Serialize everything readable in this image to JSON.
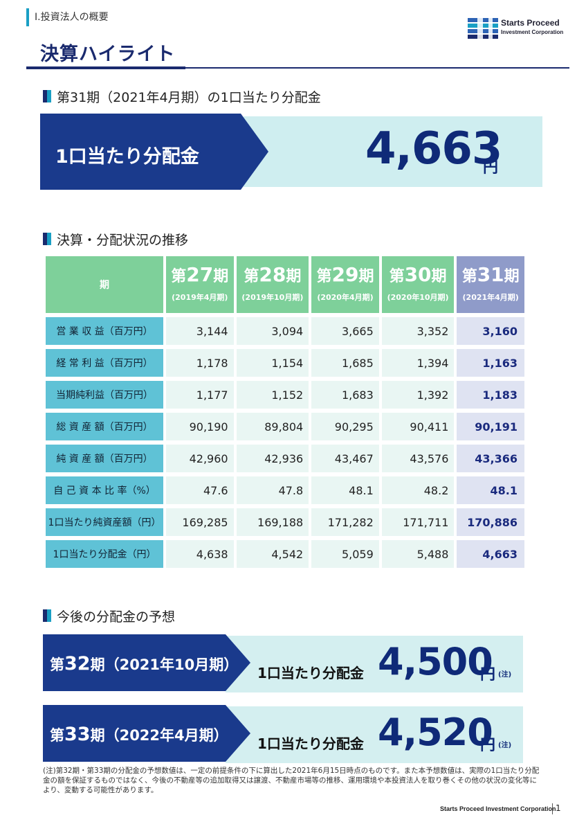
{
  "header": {
    "section_label": "Ⅰ.投資法人の概要",
    "logo_line1": "Starts Proceed",
    "logo_line2": "Investment Corporation",
    "page_title": "決算ハイライト"
  },
  "colors": {
    "navy": "#1a3a8c",
    "teal": "#5fc2d6",
    "green": "#7ed09a",
    "highlight": "#8f9bc9"
  },
  "distribution": {
    "heading": "第31期（2021年4月期）の1口当たり分配金",
    "label": "1口当たり分配金",
    "amount": "4,663",
    "unit": "円"
  },
  "results": {
    "heading": "決算・分配状況の推移",
    "corner": "期",
    "periods": [
      {
        "pre": "第",
        "num": "27",
        "post": "期",
        "date": "(2019年4月期)"
      },
      {
        "pre": "第",
        "num": "28",
        "post": "期",
        "date": "(2019年10月期)"
      },
      {
        "pre": "第",
        "num": "29",
        "post": "期",
        "date": "(2020年4月期)"
      },
      {
        "pre": "第",
        "num": "30",
        "post": "期",
        "date": "(2020年10月期)"
      },
      {
        "pre": "第",
        "num": "31",
        "post": "期",
        "date": "(2021年4月期)"
      }
    ],
    "rows": [
      {
        "label": "営 業 収 益（百万円）",
        "values": [
          "3,144",
          "3,094",
          "3,665",
          "3,352",
          "3,160"
        ]
      },
      {
        "label": "経 常 利 益（百万円）",
        "values": [
          "1,178",
          "1,154",
          "1,685",
          "1,394",
          "1,163"
        ]
      },
      {
        "label": "当期純利益（百万円）",
        "values": [
          "1,177",
          "1,152",
          "1,683",
          "1,392",
          "1,183"
        ]
      },
      {
        "label": "総 資 産 額（百万円）",
        "values": [
          "90,190",
          "89,804",
          "90,295",
          "90,411",
          "90,191"
        ]
      },
      {
        "label": "純 資 産 額（百万円）",
        "values": [
          "42,960",
          "42,936",
          "43,467",
          "43,576",
          "43,366"
        ]
      },
      {
        "label": "自 己 資 本 比 率（%）",
        "values": [
          "47.6",
          "47.8",
          "48.1",
          "48.2",
          "48.1"
        ]
      },
      {
        "label": "1口当たり純資産額（円）",
        "values": [
          "169,285",
          "169,188",
          "171,282",
          "171,711",
          "170,886"
        ]
      },
      {
        "label": "1口当たり分配金（円）",
        "values": [
          "4,638",
          "4,542",
          "5,059",
          "5,488",
          "4,663"
        ]
      }
    ]
  },
  "forecast": {
    "heading": "今後の分配金の予想",
    "items": [
      {
        "pre": "第",
        "num": "32",
        "post": "期（2021年10月期）",
        "label": "1口当たり分配金",
        "amount": "4,500",
        "unit": "円",
        "note": "(注)"
      },
      {
        "pre": "第",
        "num": "33",
        "post": "期（2022年4月期）",
        "label": "1口当たり分配金",
        "amount": "4,520",
        "unit": "円",
        "note": "(注)"
      }
    ]
  },
  "footnote": "(注)第32期・第33期の分配金の予想数値は、一定の前提条件の下に算出した2021年6月15日時点のものです。また本予想数値は、実際の1口当たり分配金の額を保証するものではなく、今後の不動産等の追加取得又は譲渡、不動産市場等の推移、運用環境や本投資法人を取り巻くその他の状況の変化等により、変動する可能性があります。",
  "footer": {
    "corp": "Starts Proceed Investment Corporation",
    "page": "1"
  }
}
